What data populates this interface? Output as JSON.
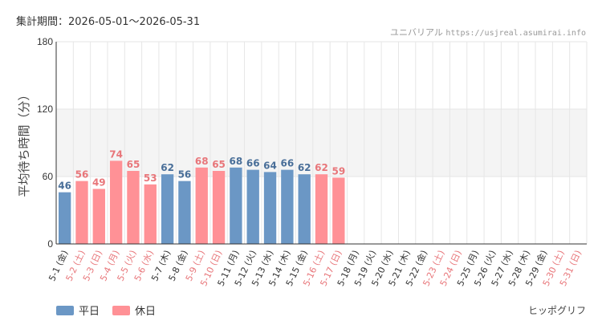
{
  "header": {
    "period_label": "集計期間：2026-05-01～2026-05-31",
    "park_name": "ユニバリアル",
    "site_url": "https://usjreal.asumirai.info"
  },
  "footer": {
    "brand": "ヒッポグリフ"
  },
  "colors": {
    "weekday": "#6b97c5",
    "holiday": "#ff9196",
    "holiday_label": "#e8767a",
    "weekday_label": "#4a6f99",
    "band": "#f4f4f4",
    "grid": "#e6e6e6",
    "axis": "#333333"
  },
  "chart_data": {
    "type": "bar",
    "ylabel": "平均待ち時間（分）",
    "ylim": [
      0,
      180
    ],
    "yticks": [
      0,
      60,
      120,
      180
    ],
    "shaded_band": [
      60,
      120
    ],
    "legend": [
      {
        "key": "weekday",
        "label": "平日"
      },
      {
        "key": "holiday",
        "label": "休日"
      }
    ],
    "categories": [
      "5-1 (金)",
      "5-2 (土)",
      "5-3 (日)",
      "5-4 (月)",
      "5-5 (火)",
      "5-6 (水)",
      "5-7 (木)",
      "5-8 (金)",
      "5-9 (土)",
      "5-10 (日)",
      "5-11 (月)",
      "5-12 (火)",
      "5-13 (水)",
      "5-14 (木)",
      "5-15 (金)",
      "5-16 (土)",
      "5-17 (日)",
      "5-18 (月)",
      "5-19 (火)",
      "5-20 (水)",
      "5-21 (木)",
      "5-22 (金)",
      "5-23 (土)",
      "5-24 (日)",
      "5-25 (月)",
      "5-26 (火)",
      "5-27 (水)",
      "5-28 (木)",
      "5-29 (金)",
      "5-30 (土)",
      "5-31 (日)"
    ],
    "day_type": [
      "weekday",
      "holiday",
      "holiday",
      "holiday",
      "holiday",
      "holiday",
      "weekday",
      "weekday",
      "holiday",
      "holiday",
      "weekday",
      "weekday",
      "weekday",
      "weekday",
      "weekday",
      "holiday",
      "holiday",
      "weekday",
      "weekday",
      "weekday",
      "weekday",
      "weekday",
      "holiday",
      "holiday",
      "weekday",
      "weekday",
      "weekday",
      "weekday",
      "weekday",
      "holiday",
      "holiday"
    ],
    "values": [
      46,
      56,
      49,
      74,
      65,
      53,
      62,
      56,
      68,
      65,
      68,
      66,
      64,
      66,
      62,
      62,
      59,
      null,
      null,
      null,
      null,
      null,
      null,
      null,
      null,
      null,
      null,
      null,
      null,
      null,
      null
    ]
  }
}
